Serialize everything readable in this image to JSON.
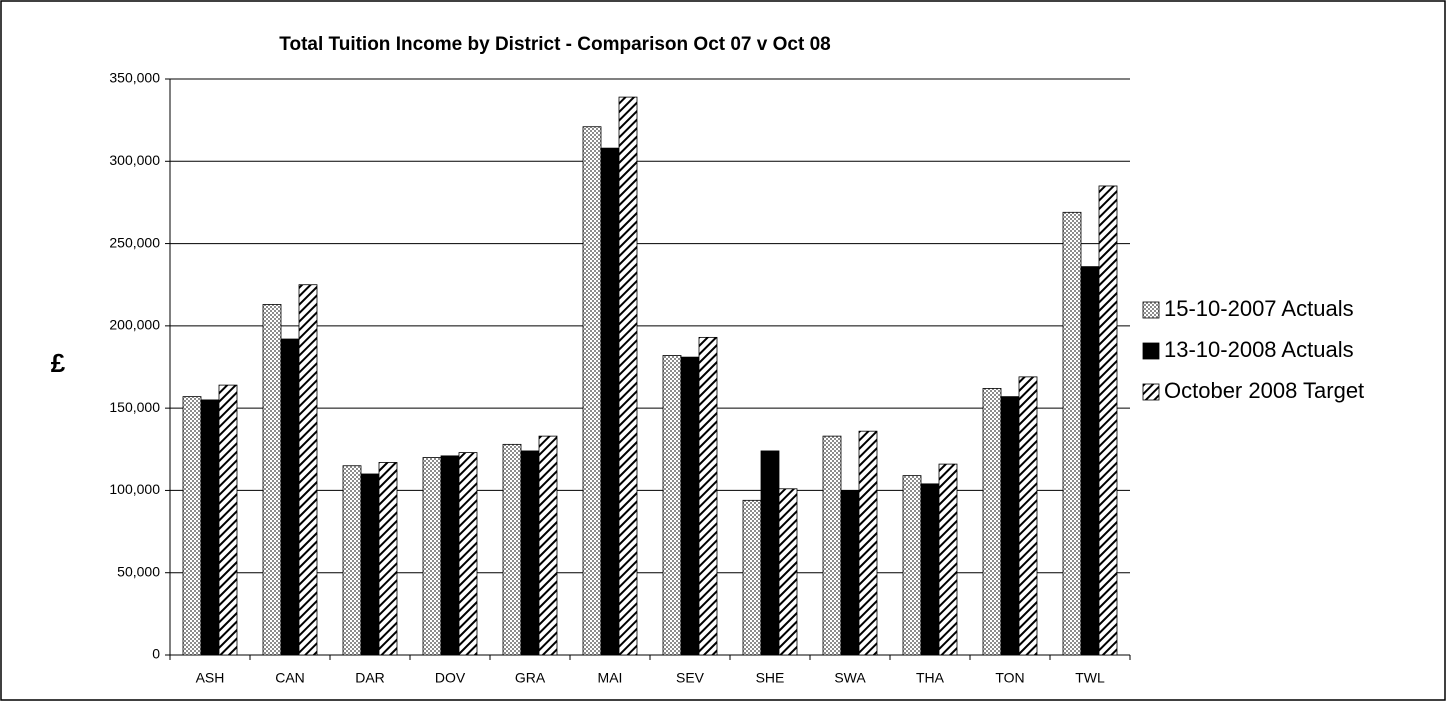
{
  "chart_data": {
    "type": "bar",
    "title": "Total Tuition Income by District - Comparison Oct 07 v Oct 08",
    "y_label": "£",
    "categories": [
      "ASH",
      "CAN",
      "DAR",
      "DOV",
      "GRA",
      "MAI",
      "SEV",
      "SHE",
      "SWA",
      "THA",
      "TON",
      "TWL"
    ],
    "series": [
      {
        "name": "15-10-2007 Actuals",
        "color": "#8c8c8c",
        "values": [
          157000,
          213000,
          115000,
          120000,
          128000,
          321000,
          182000,
          94000,
          133000,
          109000,
          162000,
          269000
        ]
      },
      {
        "name": "13-10-2008 Actuals",
        "color": "#000000",
        "values": [
          155000,
          192000,
          110000,
          121000,
          124000,
          308000,
          181000,
          124000,
          100000,
          104000,
          157000,
          236000
        ]
      },
      {
        "name": "October 2008 Target",
        "color": "#000000",
        "values": [
          164000,
          225000,
          117000,
          123000,
          133000,
          339000,
          193000,
          101000,
          136000,
          116000,
          169000,
          285000
        ]
      }
    ],
    "ylim": [
      0,
      350000
    ],
    "yticks": [
      0,
      {
        "value": 50000,
        "label": "50,000"
      },
      {
        "value": 100000,
        "label": "100,000"
      },
      {
        "value": 150000,
        "label": "150,000"
      },
      {
        "value": 200000,
        "label": "200,000"
      },
      {
        "value": 250000,
        "label": "250,000"
      },
      {
        "value": 300000,
        "label": "300,000"
      },
      {
        "value": 350000,
        "label": "350,000"
      }
    ],
    "grid": true,
    "legend": "right"
  }
}
